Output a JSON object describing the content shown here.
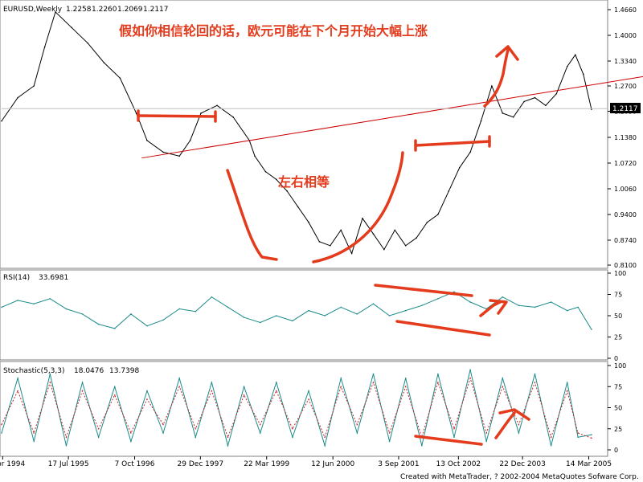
{
  "chart_data": [
    {
      "type": "line",
      "panel": "price",
      "header": {
        "symbol": "EURUSD,Weekly",
        "open": "1.2258",
        "high": "1.2260",
        "low": "1.2069",
        "close": "1.2117"
      },
      "current_price": "1.2117",
      "title": "假如你相信轮回的话，欧元可能在下个月开始大幅上涨",
      "annotation_text": "左右相等",
      "yticks": [
        "1.4660",
        "1.4000",
        "1.3340",
        "1.2700",
        "1.2050",
        "1.1380",
        "1.0720",
        "1.0060",
        "0.9400",
        "0.8740",
        "0.8100"
      ],
      "ylim": [
        0.81,
        1.466
      ],
      "series": [
        {
          "x": [
            1994.3,
            1994.6,
            1994.9,
            1995.1,
            1995.3,
            1995.6,
            1995.9,
            1996.2,
            1996.5,
            1996.8,
            1997.0,
            1997.3,
            1997.6,
            1997.8,
            1998.0,
            1998.3,
            1998.6,
            1998.9,
            1999.0,
            1999.2,
            1999.4,
            1999.6,
            1999.8,
            2000.0,
            2000.2,
            2000.4,
            2000.6,
            2000.8,
            2001.0,
            2001.2,
            2001.4,
            2001.6,
            2001.8,
            2002.0,
            2002.2,
            2002.4,
            2002.6,
            2002.8,
            2003.0,
            2003.2,
            2003.4,
            2003.6,
            2003.8,
            2004.0,
            2004.2,
            2004.4,
            2004.6,
            2004.8,
            2004.95,
            2005.1,
            2005.25
          ],
          "values": [
            1.18,
            1.24,
            1.27,
            1.37,
            1.46,
            1.42,
            1.38,
            1.33,
            1.29,
            1.2,
            1.13,
            1.1,
            1.09,
            1.13,
            1.2,
            1.22,
            1.19,
            1.13,
            1.09,
            1.05,
            1.03,
            1.0,
            0.96,
            0.92,
            0.87,
            0.86,
            0.9,
            0.84,
            0.93,
            0.89,
            0.85,
            0.9,
            0.86,
            0.88,
            0.92,
            0.94,
            1.0,
            1.06,
            1.1,
            1.18,
            1.27,
            1.2,
            1.19,
            1.23,
            1.24,
            1.22,
            1.25,
            1.32,
            1.35,
            1.3,
            1.21
          ]
        }
      ]
    },
    {
      "type": "line",
      "panel": "rsi",
      "header": {
        "label": "RSI(14)",
        "value": "33.6981"
      },
      "yticks": [
        "100",
        "75",
        "50",
        "25",
        "0"
      ],
      "ylim": [
        0,
        100
      ],
      "series": [
        {
          "x": [
            1994.3,
            1994.6,
            1994.9,
            1995.2,
            1995.5,
            1995.8,
            1996.1,
            1996.4,
            1996.7,
            1997.0,
            1997.3,
            1997.6,
            1997.9,
            1998.2,
            1998.5,
            1998.8,
            1999.1,
            1999.4,
            1999.7,
            2000.0,
            2000.3,
            2000.6,
            2000.9,
            2001.2,
            2001.5,
            2001.8,
            2002.1,
            2002.4,
            2002.7,
            2003.0,
            2003.3,
            2003.6,
            2003.9,
            2004.2,
            2004.5,
            2004.8,
            2005.0,
            2005.25
          ],
          "values": [
            60,
            68,
            64,
            70,
            58,
            52,
            40,
            35,
            52,
            38,
            45,
            58,
            55,
            72,
            60,
            48,
            42,
            50,
            44,
            56,
            50,
            60,
            52,
            64,
            50,
            56,
            62,
            70,
            78,
            66,
            58,
            72,
            62,
            60,
            66,
            56,
            60,
            34
          ]
        }
      ]
    },
    {
      "type": "line",
      "panel": "stochastic",
      "header": {
        "label": "Stochastic(5,3,3)",
        "main": "18.0476",
        "signal": "13.7398"
      },
      "yticks": [
        "100",
        "75",
        "50",
        "25",
        "0"
      ],
      "ylim": [
        0,
        100
      ],
      "series": [
        {
          "x": [
            1994.3,
            1994.6,
            1994.9,
            1995.2,
            1995.5,
            1995.8,
            1996.1,
            1996.4,
            1996.7,
            1997.0,
            1997.3,
            1997.6,
            1997.9,
            1998.2,
            1998.5,
            1998.8,
            1999.1,
            1999.4,
            1999.7,
            2000.0,
            2000.3,
            2000.6,
            2000.9,
            2001.2,
            2001.5,
            2001.8,
            2002.1,
            2002.4,
            2002.7,
            2003.0,
            2003.3,
            2003.6,
            2003.9,
            2004.2,
            2004.5,
            2004.8,
            2005.0,
            2005.25
          ],
          "values": [
            20,
            85,
            10,
            90,
            5,
            80,
            15,
            75,
            10,
            70,
            20,
            85,
            15,
            80,
            5,
            75,
            20,
            80,
            15,
            70,
            5,
            85,
            20,
            90,
            10,
            85,
            5,
            90,
            15,
            95,
            10,
            85,
            20,
            90,
            5,
            80,
            15,
            18
          ]
        },
        {
          "x": [
            1994.3,
            1994.6,
            1994.9,
            1995.2,
            1995.5,
            1995.8,
            1996.1,
            1996.4,
            1996.7,
            1997.0,
            1997.3,
            1997.6,
            1997.9,
            1998.2,
            1998.5,
            1998.8,
            1999.1,
            1999.4,
            1999.7,
            2000.0,
            2000.3,
            2000.6,
            2000.9,
            2001.2,
            2001.5,
            2001.8,
            2002.1,
            2002.4,
            2002.7,
            2003.0,
            2003.3,
            2003.6,
            2003.9,
            2004.2,
            2004.5,
            2004.8,
            2005.0,
            2005.25
          ],
          "values": [
            30,
            70,
            20,
            80,
            15,
            70,
            25,
            65,
            20,
            60,
            30,
            75,
            25,
            70,
            15,
            65,
            30,
            70,
            25,
            60,
            15,
            75,
            30,
            80,
            20,
            75,
            15,
            80,
            25,
            85,
            20,
            75,
            30,
            80,
            15,
            70,
            20,
            14
          ]
        }
      ]
    }
  ],
  "xaxis": {
    "ticks": [
      {
        "label": "25 Apr 1994",
        "x": 1994.32
      },
      {
        "label": "17 Jul 1995",
        "x": 1995.54
      },
      {
        "label": "7 Oct 1996",
        "x": 1996.77
      },
      {
        "label": "29 Dec 1997",
        "x": 1997.99
      },
      {
        "label": "22 Mar 1999",
        "x": 1999.22
      },
      {
        "label": "12 Jun 2000",
        "x": 2000.45
      },
      {
        "label": "3 Sep 2001",
        "x": 2001.67
      },
      {
        "label": "13 Oct 2002",
        "x": 2002.78
      },
      {
        "label": "22 Dec 2003",
        "x": 2003.97
      },
      {
        "label": "14 Mar 2005",
        "x": 2005.2
      }
    ],
    "xlim": [
      1994.3,
      2005.55
    ]
  },
  "footer": "Created with MetaTrader, ? 2002-2004 MetaQuotes Sofware Corp.",
  "colors": {
    "price": "#000000",
    "indicator": "#1a8a8a",
    "signal": "#cc2222",
    "annotation": "#e33b1c",
    "trendline": "#cc0000",
    "price_box": "#000000",
    "grid": "#c0c0c0",
    "separator": "#808080"
  }
}
